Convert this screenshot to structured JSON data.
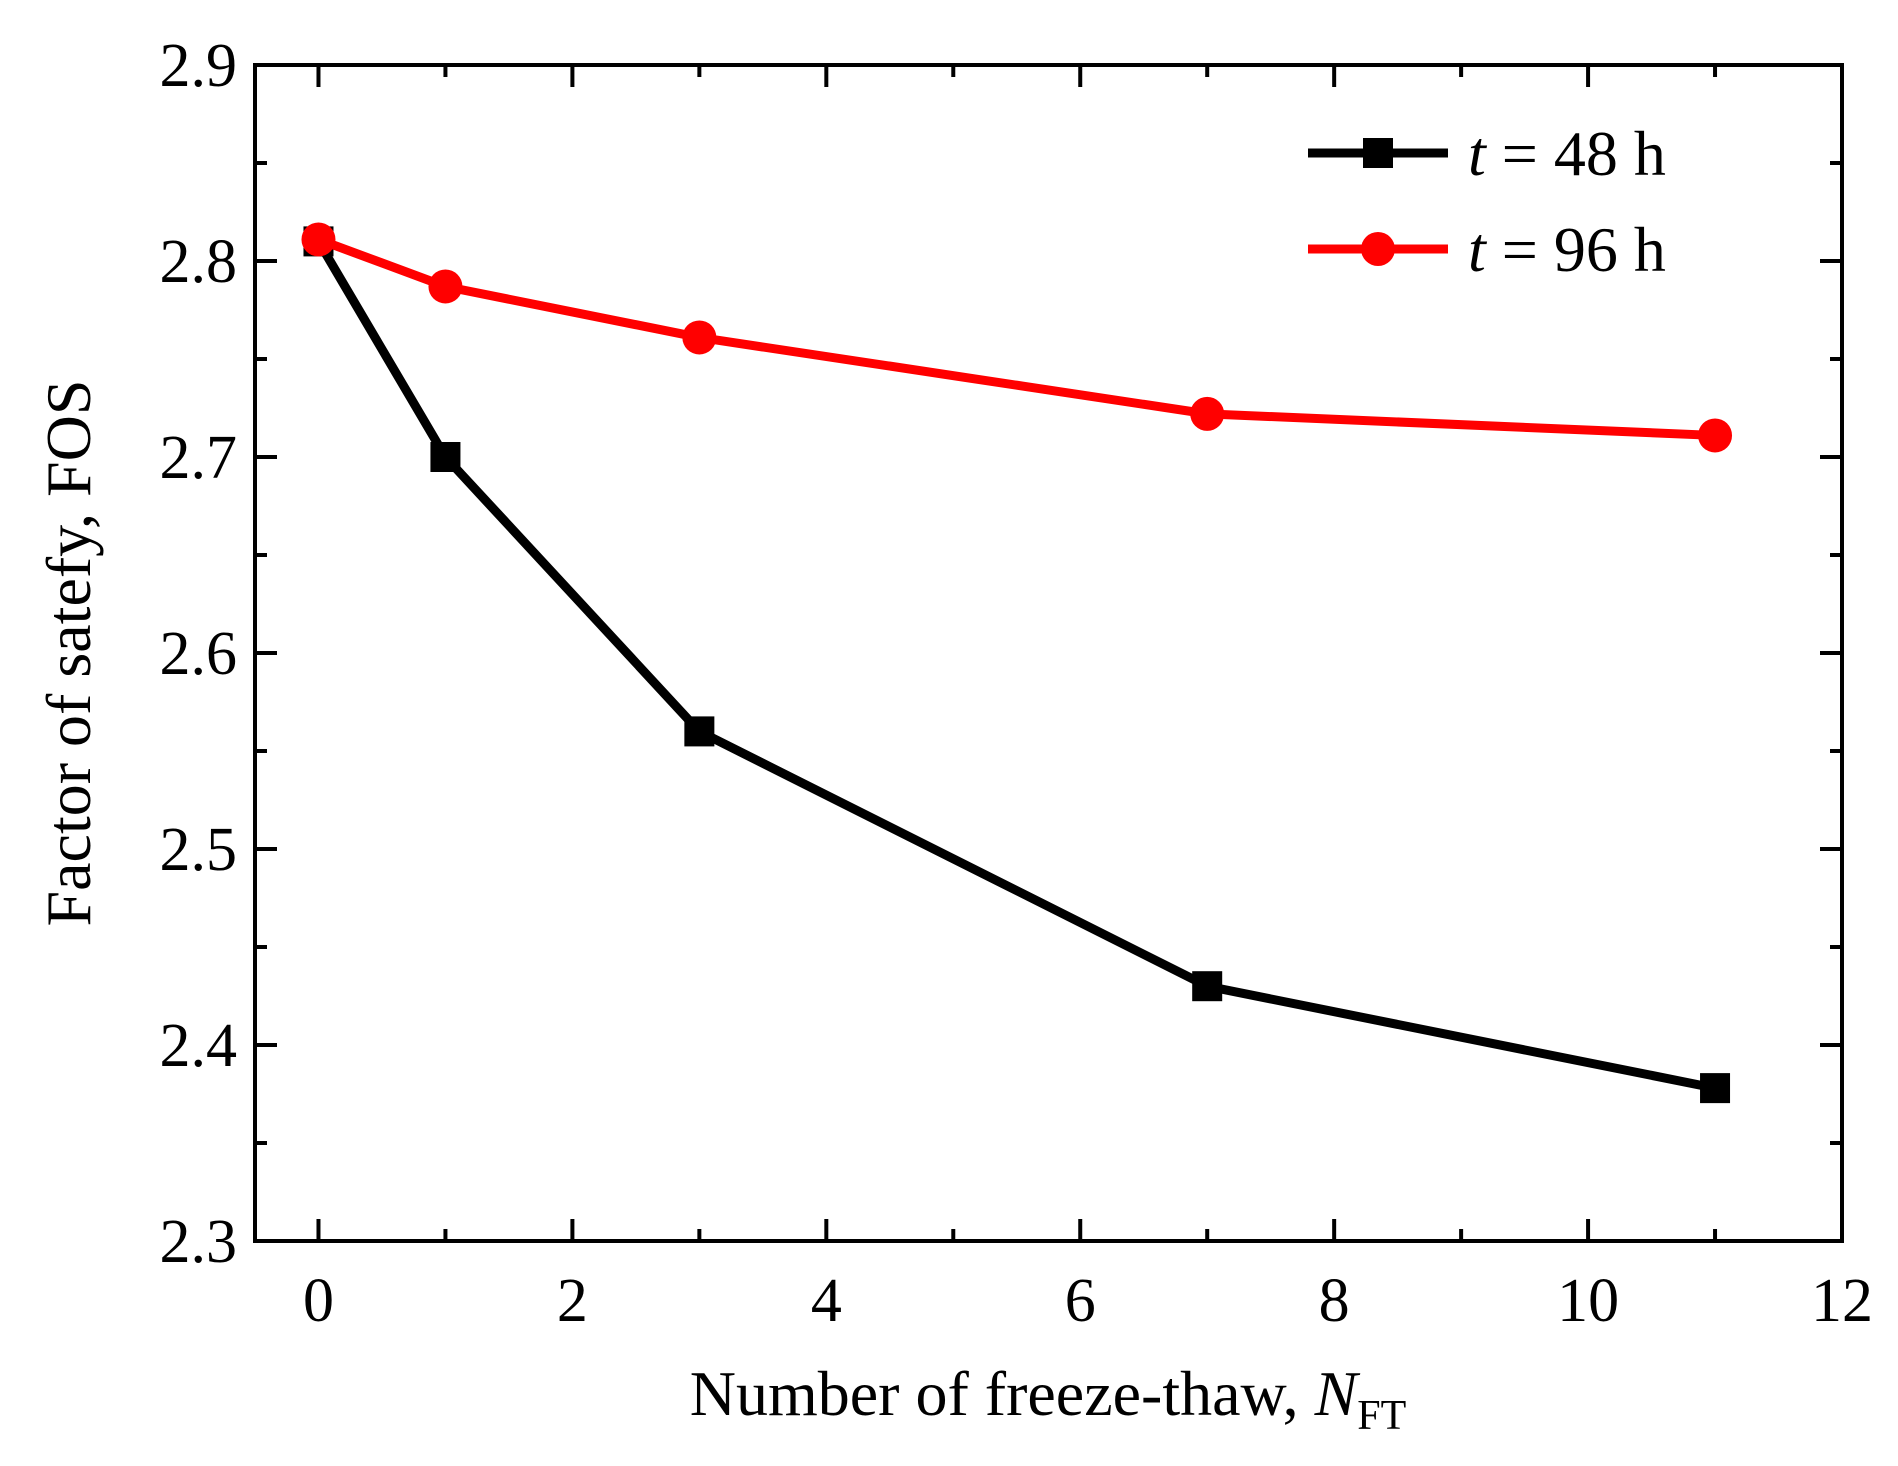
{
  "chart_data": {
    "type": "line",
    "title": "",
    "xlabel": "Number of freeze-thaw, ",
    "xlabel_var": "N",
    "xlabel_sub": "FT",
    "ylabel": "Factor of satefy, FOS",
    "xlim": [
      -0.5,
      12
    ],
    "ylim": [
      2.3,
      2.9
    ],
    "xticks": [
      0,
      2,
      4,
      6,
      8,
      10,
      12
    ],
    "xtick_labels": [
      "0",
      "2",
      "4",
      "6",
      "8",
      "10",
      "12"
    ],
    "yticks": [
      2.3,
      2.4,
      2.5,
      2.6,
      2.7,
      2.8,
      2.9
    ],
    "ytick_labels": [
      "2.3",
      "2.4",
      "2.5",
      "2.6",
      "2.7",
      "2.8",
      "2.9"
    ],
    "grid": false,
    "legend_position": "top-right",
    "series": [
      {
        "name": "t = 48 h",
        "legend_var": "t",
        "legend_rest": " = 48 h",
        "color": "#000000",
        "marker": "square",
        "x": [
          0,
          1,
          3,
          7,
          11
        ],
        "y": [
          2.81,
          2.7,
          2.56,
          2.43,
          2.378
        ]
      },
      {
        "name": "t = 96 h",
        "legend_var": "t",
        "legend_rest": " = 96 h",
        "color": "#ff0000",
        "marker": "circle",
        "x": [
          0,
          1,
          3,
          7,
          11
        ],
        "y": [
          2.811,
          2.787,
          2.761,
          2.722,
          2.711
        ]
      }
    ]
  }
}
